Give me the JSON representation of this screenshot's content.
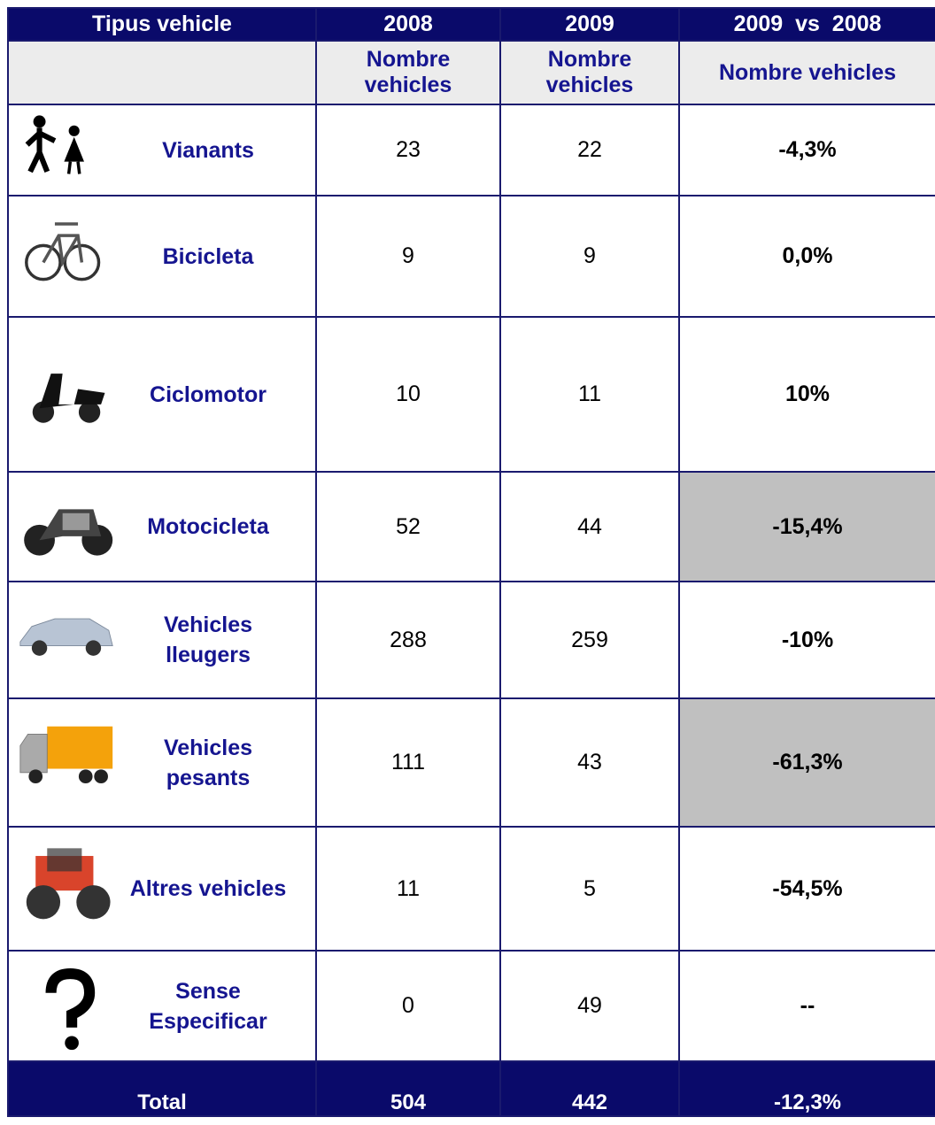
{
  "table": {
    "header": [
      "Tipus vehicle",
      "2008",
      "2009",
      "2009  vs  2008"
    ],
    "subheader": [
      "Nombre vehicles",
      "Nombre vehicles",
      "Nombre vehicles"
    ],
    "rows": [
      [
        "Vianants",
        "23",
        "22",
        "-4,3%"
      ],
      [
        "Bicicleta",
        "9",
        "9",
        "0,0%"
      ],
      [
        "Ciclomotor",
        "10",
        "11",
        "10%"
      ],
      [
        "Motocicleta",
        "52",
        "44",
        "-15,4%"
      ],
      [
        "Vehicles lleugers",
        "288",
        "259",
        "-10%"
      ],
      [
        "Vehicles pesants",
        "111",
        "43",
        "-61,3%"
      ],
      [
        "Altres vehicles",
        "11",
        "5",
        "-54,5%"
      ],
      [
        "Sense Especificar",
        "0",
        "49",
        "--"
      ]
    ],
    "total": [
      "Total",
      "504",
      "442",
      "-12,3%"
    ]
  }
}
